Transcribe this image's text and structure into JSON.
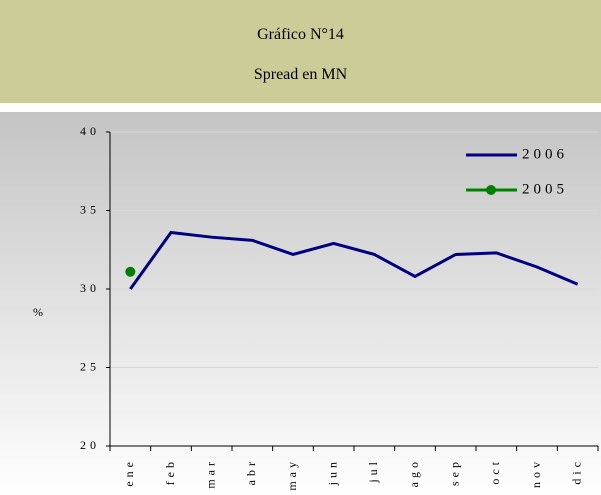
{
  "header": {
    "title": "Gráfico N°14",
    "subtitle": "Spread en MN"
  },
  "chart_data": {
    "type": "line",
    "ylabel": "%",
    "categories": [
      "ene",
      "feb",
      "mar",
      "abr",
      "may",
      "jun",
      "jul",
      "ago",
      "sep",
      "oct",
      "nov",
      "dic"
    ],
    "series": [
      {
        "name": "2006",
        "color": "#000080",
        "values": [
          30.0,
          33.6,
          33.3,
          33.1,
          32.2,
          32.9,
          32.2,
          30.8,
          32.2,
          32.3,
          31.4,
          30.3
        ]
      },
      {
        "name": "2005",
        "color": "#008000",
        "values": [
          31.1,
          null,
          null,
          null,
          null,
          null,
          null,
          null,
          null,
          null,
          null,
          null
        ]
      }
    ],
    "ylim": [
      20,
      40
    ],
    "yticks": [
      20,
      25,
      30,
      35,
      40
    ],
    "grid": true,
    "legend": "top-right"
  }
}
